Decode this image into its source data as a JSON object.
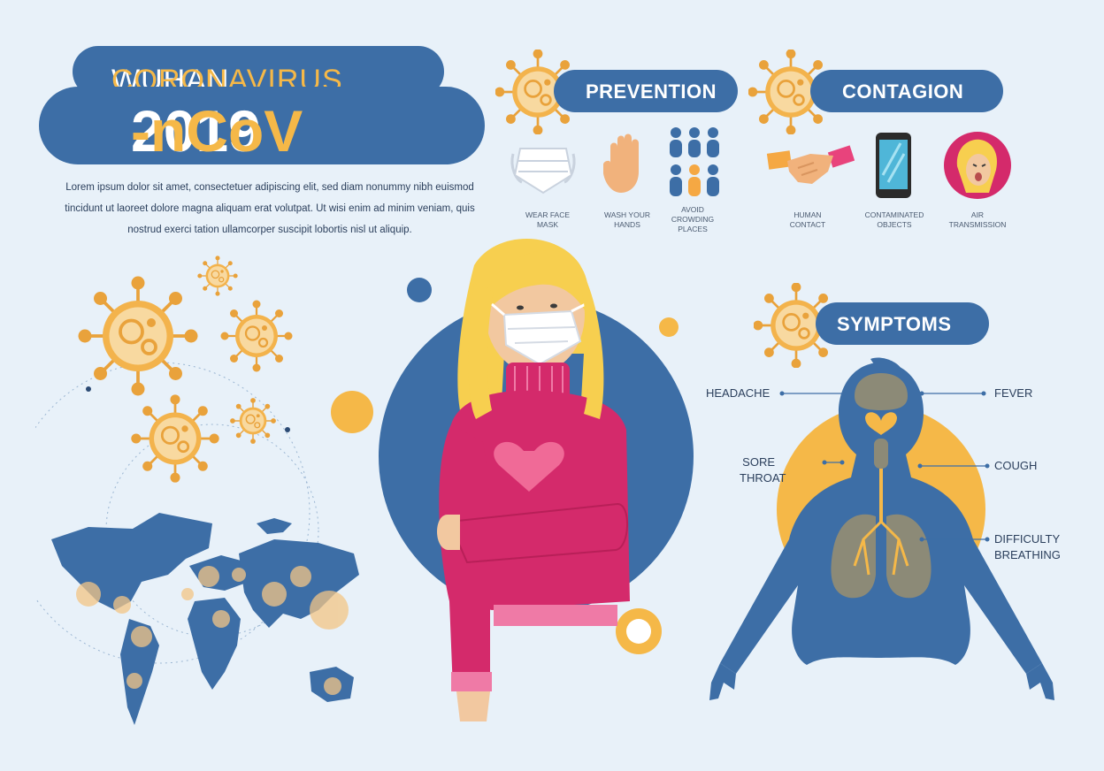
{
  "title": {
    "line1_a": "WUHAN ",
    "line1_b": "CORONAVIRUS",
    "line2_a": "2019",
    "line2_b": "-nCoV"
  },
  "intro_text": "Lorem ipsum dolor sit amet, consectetuer adipiscing elit, sed diam nonummy nibh euismod tincidunt ut laoreet dolore magna aliquam erat volutpat. Ut wisi enim ad minim veniam, quis nostrud exerci tation ullamcorper suscipit lobortis nisl ut aliquip.",
  "prevention": {
    "heading": "PREVENTION",
    "items": [
      {
        "label": "WEAR FACE MASK",
        "icon": "face-mask-icon"
      },
      {
        "label": "WASH YOUR HANDS",
        "icon": "hand-icon"
      },
      {
        "label": "AVOID CROWDING PLACES",
        "icon": "crowd-icon"
      }
    ]
  },
  "contagion": {
    "heading": "CONTAGION",
    "items": [
      {
        "label": "HUMAN CONTACT",
        "icon": "handshake-icon"
      },
      {
        "label": "CONTAMINATED OBJECTS",
        "icon": "smartphone-icon"
      },
      {
        "label": "AIR TRANSMISSION",
        "icon": "sneezing-person-icon"
      }
    ]
  },
  "symptoms": {
    "heading": "SYMPTOMS",
    "labels": {
      "headache": "HEADACHE",
      "fever": "FEVER",
      "sore_throat_1": "SORE",
      "sore_throat_2": "THROAT",
      "cough": "COUGH",
      "difficulty_1": "DIFFICULTY",
      "difficulty_2": "BREATHING"
    }
  },
  "colors": {
    "background": "#e8f1f9",
    "primary_blue": "#3d6ea6",
    "accent_orange": "#f5b848",
    "sweater_pink": "#d42a6b",
    "hair_yellow": "#f7cf4f"
  }
}
